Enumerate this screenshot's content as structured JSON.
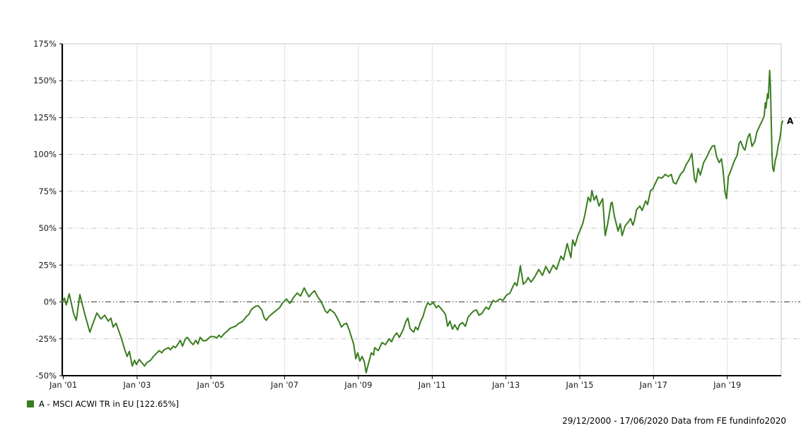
{
  "chart_data": {
    "type": "line",
    "title": "",
    "xlabel": "",
    "ylabel": "",
    "grid": true,
    "x_range": [
      2000.97,
      2020.5
    ],
    "y_range": [
      -50,
      175
    ],
    "zero_line": "dash-dot",
    "date_range": "29/12/2000 - 17/06/2020",
    "x_ticks": [
      {
        "year": 2001,
        "label": "Jan '01"
      },
      {
        "year": 2003,
        "label": "Jan '03"
      },
      {
        "year": 2005,
        "label": "Jan '05"
      },
      {
        "year": 2007,
        "label": "Jan '07"
      },
      {
        "year": 2009,
        "label": "Jan '09"
      },
      {
        "year": 2011,
        "label": "Jan '11"
      },
      {
        "year": 2013,
        "label": "Jan '13"
      },
      {
        "year": 2015,
        "label": "Jan '15"
      },
      {
        "year": 2017,
        "label": "Jan '17"
      },
      {
        "year": 2019,
        "label": "Jan '19"
      }
    ],
    "y_ticks": [
      {
        "value": 175,
        "label": "175%"
      },
      {
        "value": 150,
        "label": "150%"
      },
      {
        "value": 125,
        "label": "125%"
      },
      {
        "value": 100,
        "label": "100%"
      },
      {
        "value": 75,
        "label": "75%"
      },
      {
        "value": 50,
        "label": "50%"
      },
      {
        "value": 25,
        "label": "25%"
      },
      {
        "value": 0,
        "label": "0%"
      },
      {
        "value": -25,
        "label": "-25%"
      },
      {
        "value": -50,
        "label": "-50%"
      }
    ],
    "series": [
      {
        "name": "A - MSCI ACWI TR in EU",
        "end_label": "A",
        "final_value_pct": 122.65,
        "color": "#3a7d1f",
        "points": [
          [
            2000.97,
            0
          ],
          [
            2001.03,
            2.5
          ],
          [
            2001.08,
            -2
          ],
          [
            2001.16,
            5.5
          ],
          [
            2001.28,
            -8
          ],
          [
            2001.35,
            -12.5
          ],
          [
            2001.45,
            5
          ],
          [
            2001.58,
            -8
          ],
          [
            2001.72,
            -20.5
          ],
          [
            2001.79,
            -15.5
          ],
          [
            2001.91,
            -7.5
          ],
          [
            2002.02,
            -11.5
          ],
          [
            2002.12,
            -9
          ],
          [
            2002.22,
            -13
          ],
          [
            2002.29,
            -11
          ],
          [
            2002.35,
            -17
          ],
          [
            2002.43,
            -14.5
          ],
          [
            2002.58,
            -25
          ],
          [
            2002.66,
            -32
          ],
          [
            2002.73,
            -37
          ],
          [
            2002.79,
            -33.5
          ],
          [
            2002.87,
            -43.5
          ],
          [
            2002.93,
            -39.5
          ],
          [
            2002.98,
            -42.5
          ],
          [
            2003.06,
            -39
          ],
          [
            2003.14,
            -41.5
          ],
          [
            2003.2,
            -43.5
          ],
          [
            2003.27,
            -41
          ],
          [
            2003.37,
            -39.5
          ],
          [
            2003.44,
            -37
          ],
          [
            2003.5,
            -35.5
          ],
          [
            2003.6,
            -33
          ],
          [
            2003.67,
            -34.5
          ],
          [
            2003.73,
            -32.5
          ],
          [
            2003.85,
            -31
          ],
          [
            2003.9,
            -32.5
          ],
          [
            2003.98,
            -30
          ],
          [
            2004.04,
            -31
          ],
          [
            2004.11,
            -28.5
          ],
          [
            2004.17,
            -26
          ],
          [
            2004.23,
            -30
          ],
          [
            2004.31,
            -25
          ],
          [
            2004.36,
            -24
          ],
          [
            2004.46,
            -27.5
          ],
          [
            2004.52,
            -29
          ],
          [
            2004.59,
            -26
          ],
          [
            2004.65,
            -28.5
          ],
          [
            2004.71,
            -24
          ],
          [
            2004.8,
            -26.5
          ],
          [
            2004.88,
            -26
          ],
          [
            2004.99,
            -23.5
          ],
          [
            2005.09,
            -23.5
          ],
          [
            2005.16,
            -24.5
          ],
          [
            2005.22,
            -22.5
          ],
          [
            2005.28,
            -24
          ],
          [
            2005.36,
            -21.5
          ],
          [
            2005.46,
            -19.5
          ],
          [
            2005.51,
            -18
          ],
          [
            2005.61,
            -17
          ],
          [
            2005.67,
            -16.5
          ],
          [
            2005.76,
            -14.5
          ],
          [
            2005.84,
            -13.5
          ],
          [
            2005.9,
            -12
          ],
          [
            2005.96,
            -10
          ],
          [
            2006.03,
            -8.5
          ],
          [
            2006.09,
            -5.5
          ],
          [
            2006.15,
            -4
          ],
          [
            2006.22,
            -3
          ],
          [
            2006.28,
            -2.5
          ],
          [
            2006.38,
            -5.5
          ],
          [
            2006.44,
            -10.5
          ],
          [
            2006.5,
            -12.5
          ],
          [
            2006.57,
            -10
          ],
          [
            2006.66,
            -8
          ],
          [
            2006.76,
            -6
          ],
          [
            2006.86,
            -4
          ],
          [
            2006.95,
            -0.5
          ],
          [
            2007.05,
            2
          ],
          [
            2007.14,
            -1
          ],
          [
            2007.24,
            3
          ],
          [
            2007.34,
            6
          ],
          [
            2007.43,
            4
          ],
          [
            2007.53,
            9.5
          ],
          [
            2007.6,
            6
          ],
          [
            2007.66,
            3.5
          ],
          [
            2007.74,
            6
          ],
          [
            2007.81,
            7.5
          ],
          [
            2007.91,
            3
          ],
          [
            2007.97,
            1
          ],
          [
            2008.04,
            -2.5
          ],
          [
            2008.1,
            -6
          ],
          [
            2008.16,
            -7.5
          ],
          [
            2008.23,
            -5
          ],
          [
            2008.35,
            -7.5
          ],
          [
            2008.45,
            -12
          ],
          [
            2008.54,
            -17
          ],
          [
            2008.62,
            -15
          ],
          [
            2008.68,
            -14.5
          ],
          [
            2008.75,
            -19
          ],
          [
            2008.87,
            -28.5
          ],
          [
            2008.93,
            -38.5
          ],
          [
            2008.98,
            -34.5
          ],
          [
            2009.04,
            -40
          ],
          [
            2009.1,
            -37
          ],
          [
            2009.16,
            -40.5
          ],
          [
            2009.21,
            -48
          ],
          [
            2009.27,
            -42
          ],
          [
            2009.35,
            -34.5
          ],
          [
            2009.41,
            -36
          ],
          [
            2009.44,
            -31
          ],
          [
            2009.54,
            -33
          ],
          [
            2009.64,
            -27.5
          ],
          [
            2009.73,
            -29
          ],
          [
            2009.83,
            -25
          ],
          [
            2009.9,
            -27
          ],
          [
            2009.96,
            -23.5
          ],
          [
            2010.04,
            -21
          ],
          [
            2010.11,
            -24
          ],
          [
            2010.21,
            -19
          ],
          [
            2010.29,
            -13
          ],
          [
            2010.34,
            -11
          ],
          [
            2010.4,
            -18
          ],
          [
            2010.5,
            -20.5
          ],
          [
            2010.55,
            -17
          ],
          [
            2010.61,
            -19
          ],
          [
            2010.69,
            -13
          ],
          [
            2010.75,
            -10
          ],
          [
            2010.82,
            -4
          ],
          [
            2010.88,
            -0.5
          ],
          [
            2010.94,
            -2
          ],
          [
            2011.03,
            -0.5
          ],
          [
            2011.11,
            -4
          ],
          [
            2011.17,
            -2.5
          ],
          [
            2011.24,
            -4.5
          ],
          [
            2011.32,
            -7
          ],
          [
            2011.36,
            -8.5
          ],
          [
            2011.42,
            -16.5
          ],
          [
            2011.48,
            -13
          ],
          [
            2011.55,
            -18.5
          ],
          [
            2011.61,
            -15.5
          ],
          [
            2011.69,
            -19
          ],
          [
            2011.74,
            -15.5
          ],
          [
            2011.82,
            -14
          ],
          [
            2011.9,
            -16.5
          ],
          [
            2011.97,
            -10.5
          ],
          [
            2012.05,
            -8
          ],
          [
            2012.13,
            -6
          ],
          [
            2012.2,
            -5.5
          ],
          [
            2012.27,
            -9
          ],
          [
            2012.34,
            -8
          ],
          [
            2012.46,
            -3.5
          ],
          [
            2012.53,
            -5
          ],
          [
            2012.65,
            1
          ],
          [
            2012.72,
            0
          ],
          [
            2012.84,
            2
          ],
          [
            2012.92,
            1
          ],
          [
            2013.01,
            4.5
          ],
          [
            2013.11,
            6
          ],
          [
            2013.18,
            10
          ],
          [
            2013.24,
            13
          ],
          [
            2013.3,
            11
          ],
          [
            2013.35,
            18
          ],
          [
            2013.39,
            24.5
          ],
          [
            2013.47,
            12
          ],
          [
            2013.55,
            14
          ],
          [
            2013.6,
            16.5
          ],
          [
            2013.68,
            13.5
          ],
          [
            2013.78,
            17
          ],
          [
            2013.89,
            22
          ],
          [
            2013.99,
            18
          ],
          [
            2014.08,
            24
          ],
          [
            2014.18,
            19.5
          ],
          [
            2014.28,
            25
          ],
          [
            2014.37,
            22
          ],
          [
            2014.49,
            31
          ],
          [
            2014.56,
            28.5
          ],
          [
            2014.66,
            39.5
          ],
          [
            2014.76,
            30
          ],
          [
            2014.81,
            42
          ],
          [
            2014.87,
            38
          ],
          [
            2014.95,
            45
          ],
          [
            2015.0,
            48
          ],
          [
            2015.08,
            53
          ],
          [
            2015.14,
            59
          ],
          [
            2015.23,
            71
          ],
          [
            2015.29,
            68
          ],
          [
            2015.33,
            75.5
          ],
          [
            2015.39,
            69
          ],
          [
            2015.45,
            72
          ],
          [
            2015.52,
            65
          ],
          [
            2015.58,
            68
          ],
          [
            2015.62,
            70
          ],
          [
            2015.66,
            56
          ],
          [
            2015.69,
            45
          ],
          [
            2015.75,
            52
          ],
          [
            2015.85,
            67
          ],
          [
            2015.88,
            67.5
          ],
          [
            2015.94,
            58
          ],
          [
            2016.0,
            52
          ],
          [
            2016.04,
            48
          ],
          [
            2016.1,
            53
          ],
          [
            2016.15,
            45
          ],
          [
            2016.23,
            51.5
          ],
          [
            2016.31,
            54
          ],
          [
            2016.38,
            56.5
          ],
          [
            2016.44,
            52
          ],
          [
            2016.48,
            55
          ],
          [
            2016.54,
            62.5
          ],
          [
            2016.63,
            65
          ],
          [
            2016.69,
            62
          ],
          [
            2016.79,
            68.5
          ],
          [
            2016.84,
            66
          ],
          [
            2016.92,
            75.5
          ],
          [
            2016.98,
            76.5
          ],
          [
            2017.06,
            81
          ],
          [
            2017.13,
            84.5
          ],
          [
            2017.23,
            84
          ],
          [
            2017.32,
            86.5
          ],
          [
            2017.4,
            85
          ],
          [
            2017.48,
            86.5
          ],
          [
            2017.54,
            81
          ],
          [
            2017.61,
            80
          ],
          [
            2017.73,
            86.5
          ],
          [
            2017.82,
            89
          ],
          [
            2017.88,
            93
          ],
          [
            2017.96,
            96
          ],
          [
            2018.04,
            100.5
          ],
          [
            2018.11,
            83.5
          ],
          [
            2018.15,
            81
          ],
          [
            2018.21,
            90.5
          ],
          [
            2018.27,
            86
          ],
          [
            2018.36,
            94.5
          ],
          [
            2018.44,
            98
          ],
          [
            2018.51,
            102
          ],
          [
            2018.59,
            105.5
          ],
          [
            2018.65,
            106
          ],
          [
            2018.71,
            98.5
          ],
          [
            2018.78,
            94.5
          ],
          [
            2018.84,
            97
          ],
          [
            2018.88,
            90.5
          ],
          [
            2018.94,
            74.5
          ],
          [
            2018.98,
            70
          ],
          [
            2019.03,
            85
          ],
          [
            2019.11,
            90
          ],
          [
            2019.19,
            95.5
          ],
          [
            2019.27,
            99.5
          ],
          [
            2019.32,
            107.5
          ],
          [
            2019.36,
            109
          ],
          [
            2019.44,
            104
          ],
          [
            2019.48,
            103
          ],
          [
            2019.53,
            109
          ],
          [
            2019.57,
            112.5
          ],
          [
            2019.61,
            114
          ],
          [
            2019.67,
            105.5
          ],
          [
            2019.75,
            109
          ],
          [
            2019.8,
            115
          ],
          [
            2019.88,
            119.5
          ],
          [
            2019.94,
            122.5
          ],
          [
            2020.0,
            126
          ],
          [
            2020.03,
            135
          ],
          [
            2020.05,
            131.5
          ],
          [
            2020.09,
            141
          ],
          [
            2020.11,
            138
          ],
          [
            2020.15,
            157
          ],
          [
            2020.17,
            146
          ],
          [
            2020.19,
            125
          ],
          [
            2020.21,
            101
          ],
          [
            2020.23,
            91
          ],
          [
            2020.26,
            88.5
          ],
          [
            2020.3,
            96
          ],
          [
            2020.34,
            99.5
          ],
          [
            2020.38,
            106
          ],
          [
            2020.42,
            110
          ],
          [
            2020.45,
            115
          ],
          [
            2020.47,
            120
          ],
          [
            2020.5,
            122.65
          ]
        ]
      }
    ]
  },
  "legend": {
    "items": [
      {
        "label": "A - MSCI ACWI TR in EU [122.65%]",
        "color": "#3a7d1f"
      }
    ]
  },
  "footer": {
    "text": "29/12/2000 - 17/06/2020 Data from FE fundinfo2020"
  }
}
